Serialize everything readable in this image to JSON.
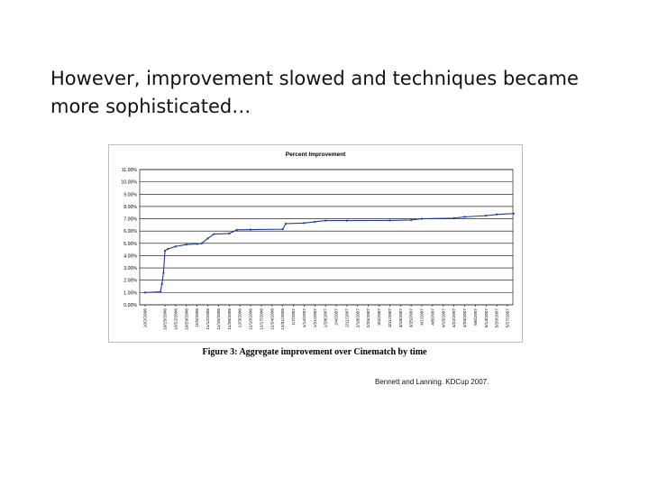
{
  "slide": {
    "title_line1": "However, improvement slowed and techniques became",
    "title_line2": "more sophisticated…",
    "caption": "Figure 3: Aggregate improvement over Cinematch by time",
    "citation": "Bennett and Lanning. KDCup 2007."
  },
  "colors": {
    "line": "#1f3a93",
    "grid": "#000000",
    "frame": "#bdbdbd"
  },
  "chart_data": {
    "type": "line",
    "title": "Percent Improvement",
    "xlabel": "",
    "ylabel": "",
    "ylim": [
      0,
      11
    ],
    "yticks": [
      "0.00%",
      "1.00%",
      "2.00%",
      "3.00%",
      "4.00%",
      "5.00%",
      "6.00%",
      "7.00%",
      "8.00%",
      "9.00%",
      "10.00%",
      "11.00%"
    ],
    "x_ticks": [
      "10/2/2006",
      "10/15/2006",
      "10/22/2006",
      "10/29/2006",
      "11/5/2006",
      "11/12/2006",
      "11/19/2006",
      "11/26/2006",
      "12/3/2006",
      "12/10/2006",
      "12/17/2006",
      "12/24/2006",
      "12/31/2006",
      "1/7/2007",
      "1/14/2007",
      "1/21/2007",
      "1/28/2007",
      "2/4/2007",
      "2/11/2007",
      "2/18/2007",
      "2/25/2007",
      "3/4/2007",
      "3/11/2007",
      "3/18/2007",
      "3/25/2007",
      "4/1/2007",
      "4/8/2007",
      "4/15/2007",
      "4/22/2007",
      "4/29/2007",
      "5/6/2007",
      "5/13/2007",
      "5/20/2007",
      "5/27/2007"
    ],
    "grid": true,
    "legend": "none",
    "series": [
      {
        "values": [
          {
            "x": "10/2/2006",
            "y": 1.0
          },
          {
            "x": "10/12/2006",
            "y": 1.06
          },
          {
            "x": "10/13/2006",
            "y": 1.7
          },
          {
            "x": "10/14/2006",
            "y": 2.6
          },
          {
            "x": "10/15/2006",
            "y": 4.4
          },
          {
            "x": "10/17/2006",
            "y": 4.55
          },
          {
            "x": "10/22/2006",
            "y": 4.75
          },
          {
            "x": "10/29/2006",
            "y": 4.9
          },
          {
            "x": "11/5/2006",
            "y": 4.95
          },
          {
            "x": "11/8/2006",
            "y": 5.0
          },
          {
            "x": "11/12/2006",
            "y": 5.4
          },
          {
            "x": "11/16/2006",
            "y": 5.75
          },
          {
            "x": "11/26/2006",
            "y": 5.8
          },
          {
            "x": "12/1/2006",
            "y": 6.1
          },
          {
            "x": "12/10/2006",
            "y": 6.12
          },
          {
            "x": "12/31/2006",
            "y": 6.15
          },
          {
            "x": "1/2/2007",
            "y": 6.6
          },
          {
            "x": "1/14/2007",
            "y": 6.65
          },
          {
            "x": "1/21/2007",
            "y": 6.75
          },
          {
            "x": "1/28/2007",
            "y": 6.85
          },
          {
            "x": "2/11/2007",
            "y": 6.85
          },
          {
            "x": "3/11/2007",
            "y": 6.86
          },
          {
            "x": "3/25/2007",
            "y": 6.9
          },
          {
            "x": "4/1/2007",
            "y": 7.0
          },
          {
            "x": "4/22/2007",
            "y": 7.05
          },
          {
            "x": "4/29/2007",
            "y": 7.15
          },
          {
            "x": "5/13/2007",
            "y": 7.25
          },
          {
            "x": "5/20/2007",
            "y": 7.35
          },
          {
            "x": "5/31/2007",
            "y": 7.42
          }
        ]
      }
    ]
  }
}
